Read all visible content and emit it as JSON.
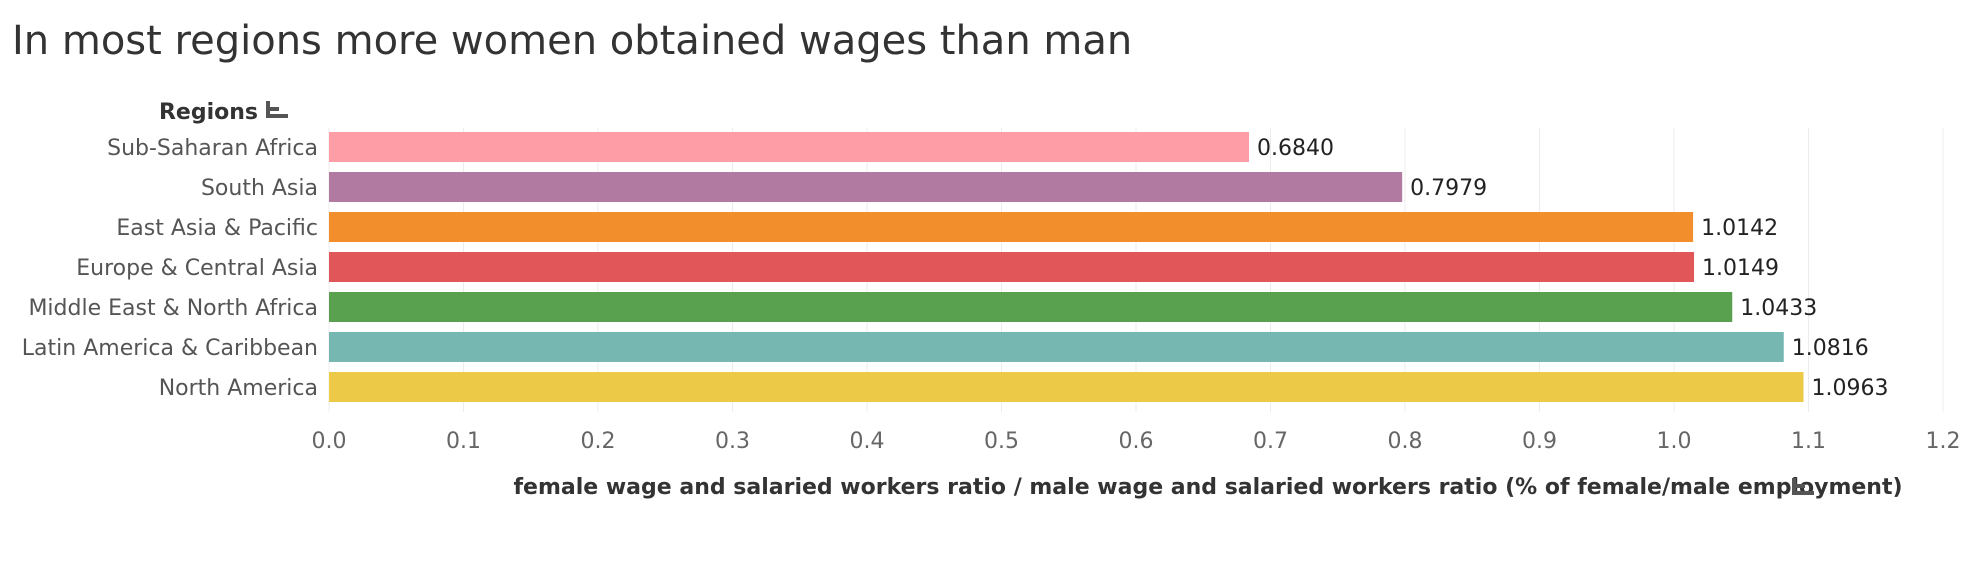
{
  "chart_data": {
    "type": "bar",
    "orientation": "horizontal",
    "title": "In most regions more women obtained wages than man",
    "ylabel": "Regions",
    "xlabel": "female wage and salaried workers ratio / male wage and salaried workers ratio (% of female/male employment)",
    "categories": [
      "Sub-Saharan Africa",
      "South Asia",
      "East Asia & Pacific",
      "Europe & Central Asia",
      "Middle East & North Africa",
      "Latin America & Caribbean",
      "North America"
    ],
    "values": [
      0.684,
      0.7979,
      1.0142,
      1.0149,
      1.0433,
      1.0816,
      1.0963
    ],
    "value_labels": [
      "0.6840",
      "0.7979",
      "1.0142",
      "1.0149",
      "1.0433",
      "1.0816",
      "1.0963"
    ],
    "colors": [
      "#ff9da7",
      "#b07aa1",
      "#f28e2b",
      "#e15759",
      "#59a14f",
      "#76b7b2",
      "#edc948"
    ],
    "xlim": [
      0,
      1.2
    ],
    "xticks": [
      0,
      0.1,
      0.2,
      0.3,
      0.4,
      0.5,
      0.6,
      0.7,
      0.8,
      0.9,
      1.0,
      1.1,
      1.2
    ],
    "xtick_labels": [
      "0.0",
      "0.1",
      "0.2",
      "0.3",
      "0.4",
      "0.5",
      "0.6",
      "0.7",
      "0.8",
      "0.9",
      "1.0",
      "1.1",
      "1.2"
    ],
    "grid": true,
    "sort_icon": "sort-descending-icon"
  }
}
